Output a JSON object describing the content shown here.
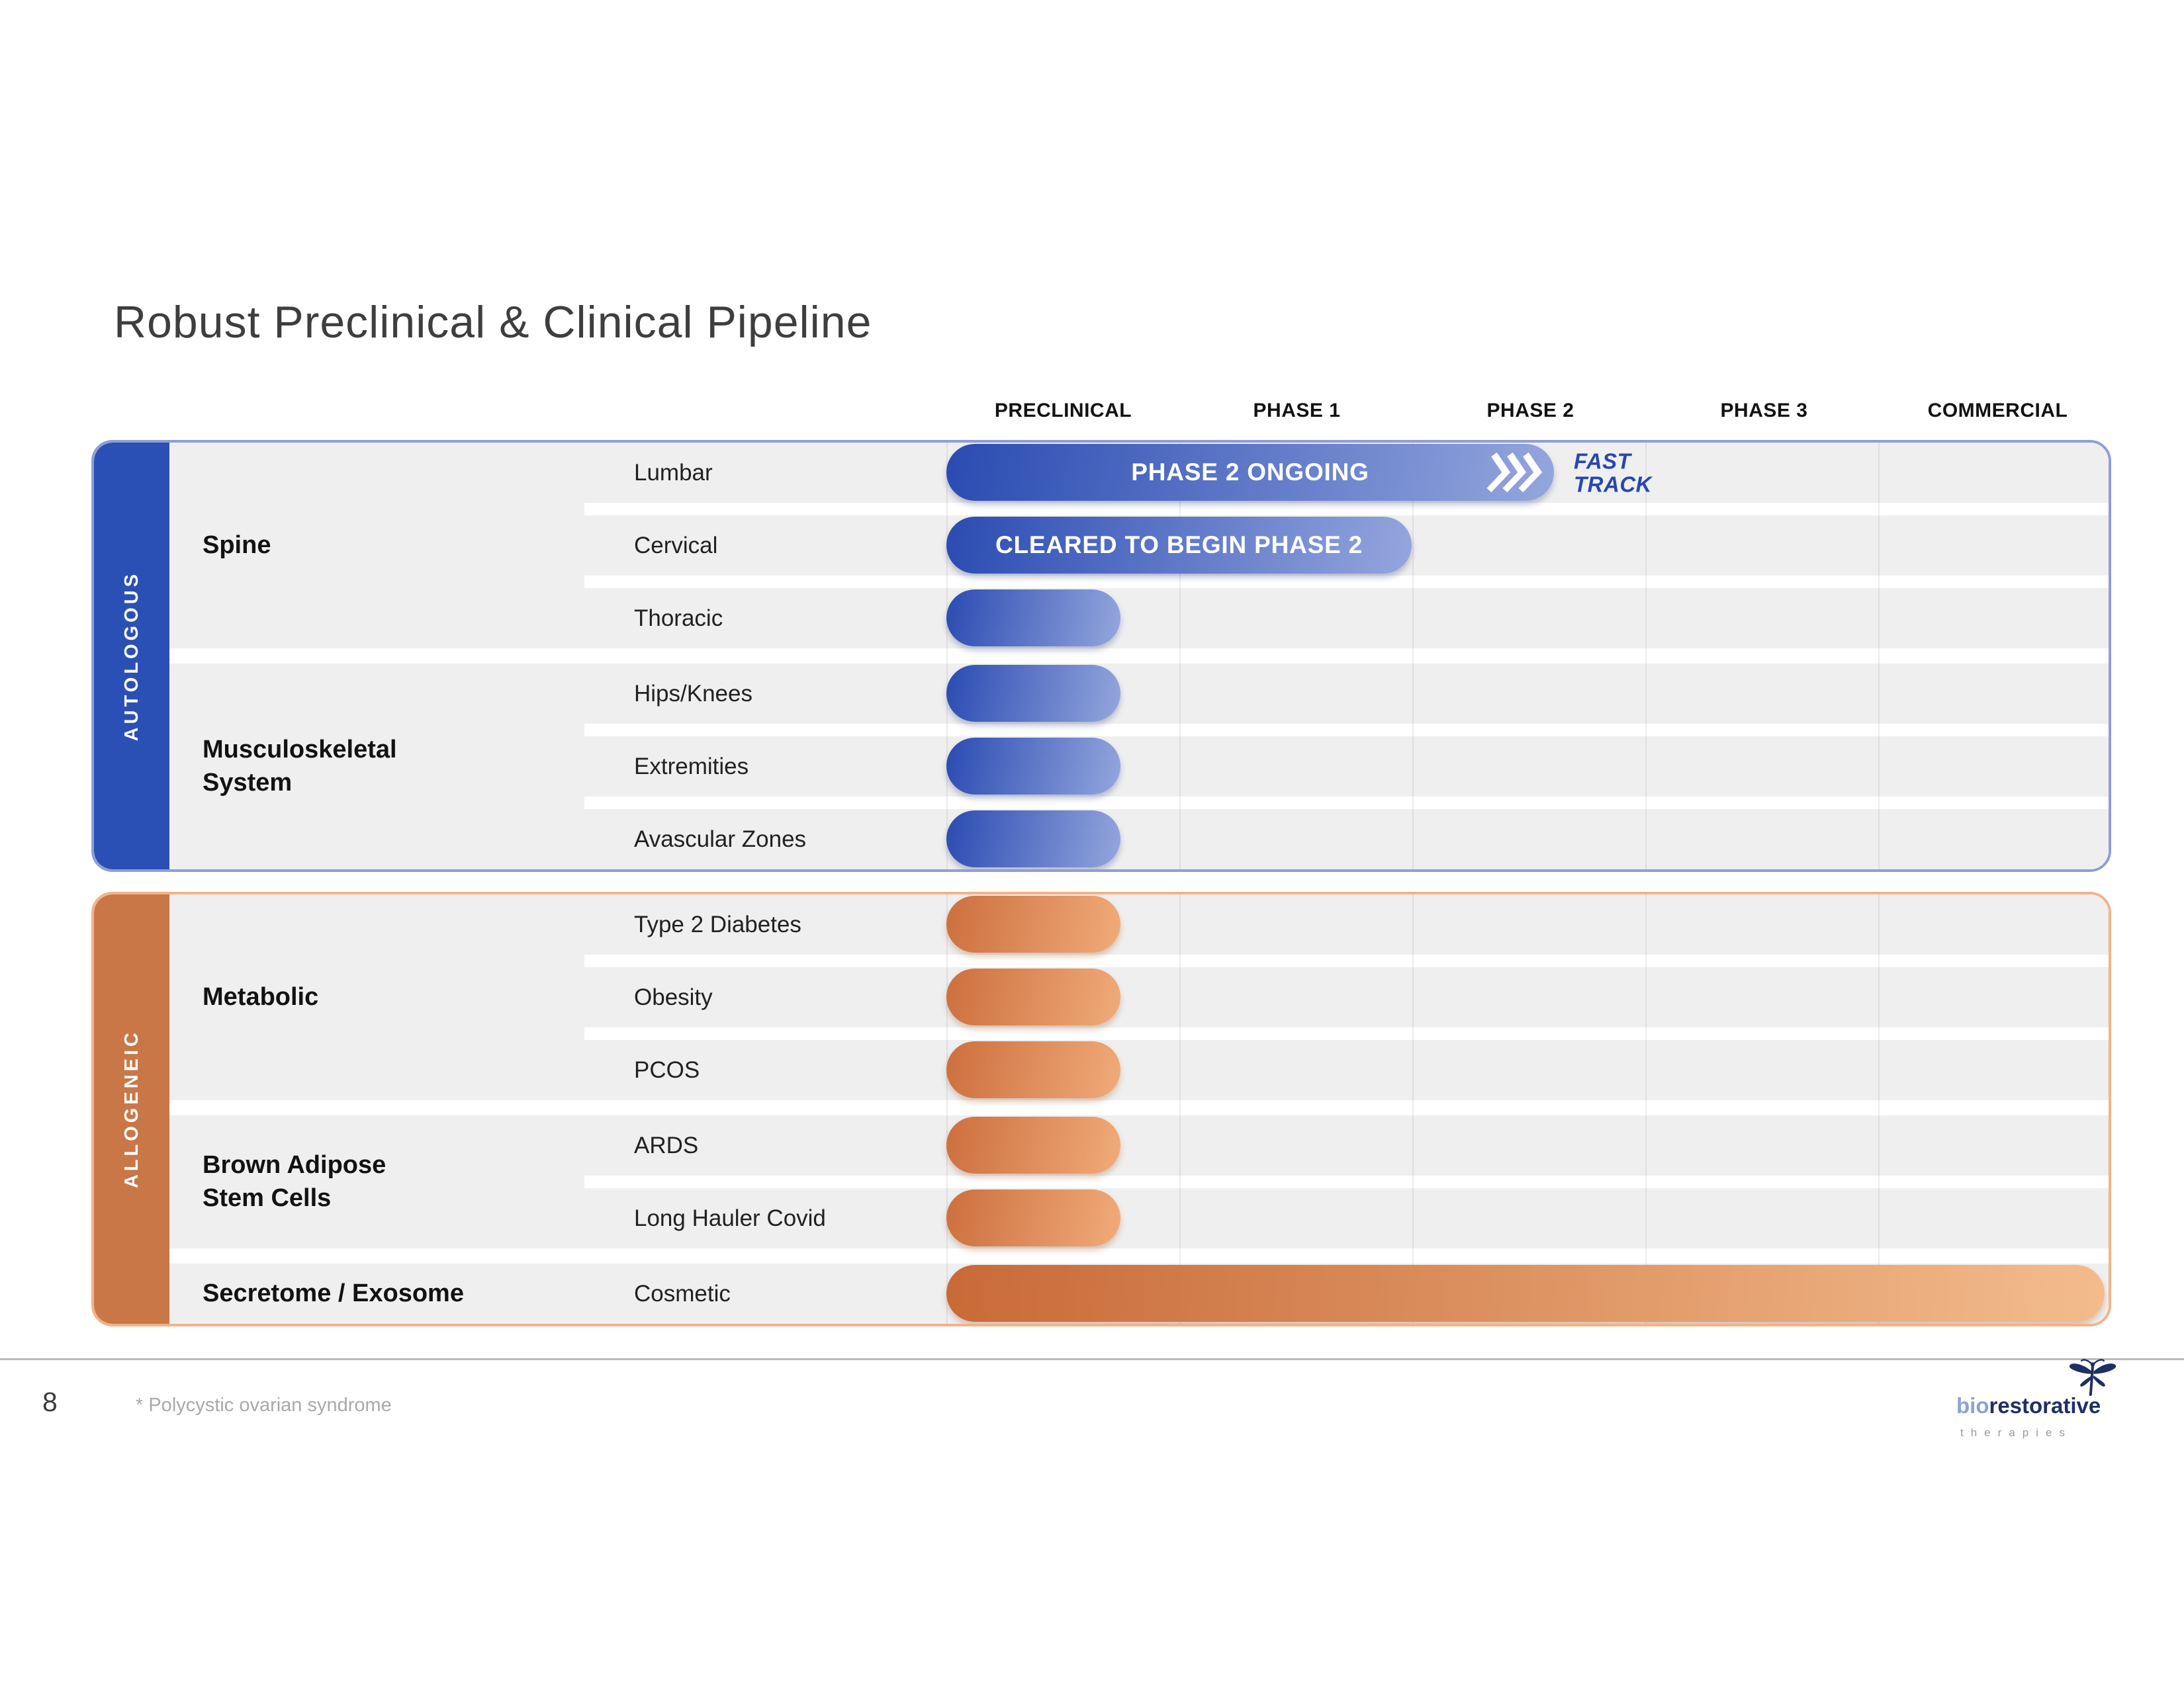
{
  "slide": {
    "title": "Robust Preclinical & Clinical Pipeline",
    "page_number": "8",
    "footnote": "* Polycystic ovarian syndrome"
  },
  "columns": [
    "PRECLINICAL",
    "PHASE 1",
    "PHASE 2",
    "PHASE 3",
    "COMMERCIAL"
  ],
  "colors": {
    "autologous_accent": "#2b50b5",
    "autologous_border": "#8d9ed8",
    "allogeneic_accent": "#c97747",
    "allogeneic_border": "#f2b388",
    "bar_blue_dark": "#2a4bb2",
    "bar_blue_light": "#94a6dd",
    "bar_orange_dark": "#cd6f3e",
    "bar_orange_light": "#f0ab79",
    "fast_track_text": "#2748ad",
    "row_background": "#efefef"
  },
  "sections": [
    {
      "id": "autologous",
      "sidebar_label": "AUTOLOGOUS",
      "groups": [
        {
          "label": "Spine",
          "rows": [
            {
              "label": "Lumbar",
              "bar": "wide",
              "bar_text": "PHASE 2 ONGOING",
              "chevrons": true,
              "fast_track": [
                "FAST",
                "TRACK"
              ]
            },
            {
              "label": "Cervical",
              "bar": "medium",
              "bar_text": "CLEARED TO BEGIN PHASE 2"
            },
            {
              "label": "Thoracic",
              "bar": "small"
            }
          ]
        },
        {
          "label": "Musculoskeletal\nSystem",
          "rows": [
            {
              "label": "Hips/Knees",
              "bar": "small"
            },
            {
              "label": "Extremities",
              "bar": "small"
            },
            {
              "label": "Avascular Zones",
              "bar": "small"
            }
          ]
        }
      ]
    },
    {
      "id": "allogeneic",
      "sidebar_label": "ALLOGENEIC",
      "groups": [
        {
          "label": "Metabolic",
          "rows": [
            {
              "label": "Type 2 Diabetes",
              "bar": "small"
            },
            {
              "label": "Obesity",
              "bar": "small"
            },
            {
              "label": "PCOS",
              "bar": "small"
            }
          ]
        },
        {
          "label": "Brown Adipose\nStem Cells",
          "rows": [
            {
              "label": "ARDS",
              "bar": "small"
            },
            {
              "label": "Long Hauler Covid",
              "bar": "small"
            }
          ]
        },
        {
          "label": "Secretome / Exosome",
          "rows": [
            {
              "label": "Cosmetic",
              "bar": "full"
            }
          ]
        }
      ]
    }
  ],
  "logo": {
    "part1": "bio",
    "part2": "restorative",
    "sub": "therapies"
  }
}
